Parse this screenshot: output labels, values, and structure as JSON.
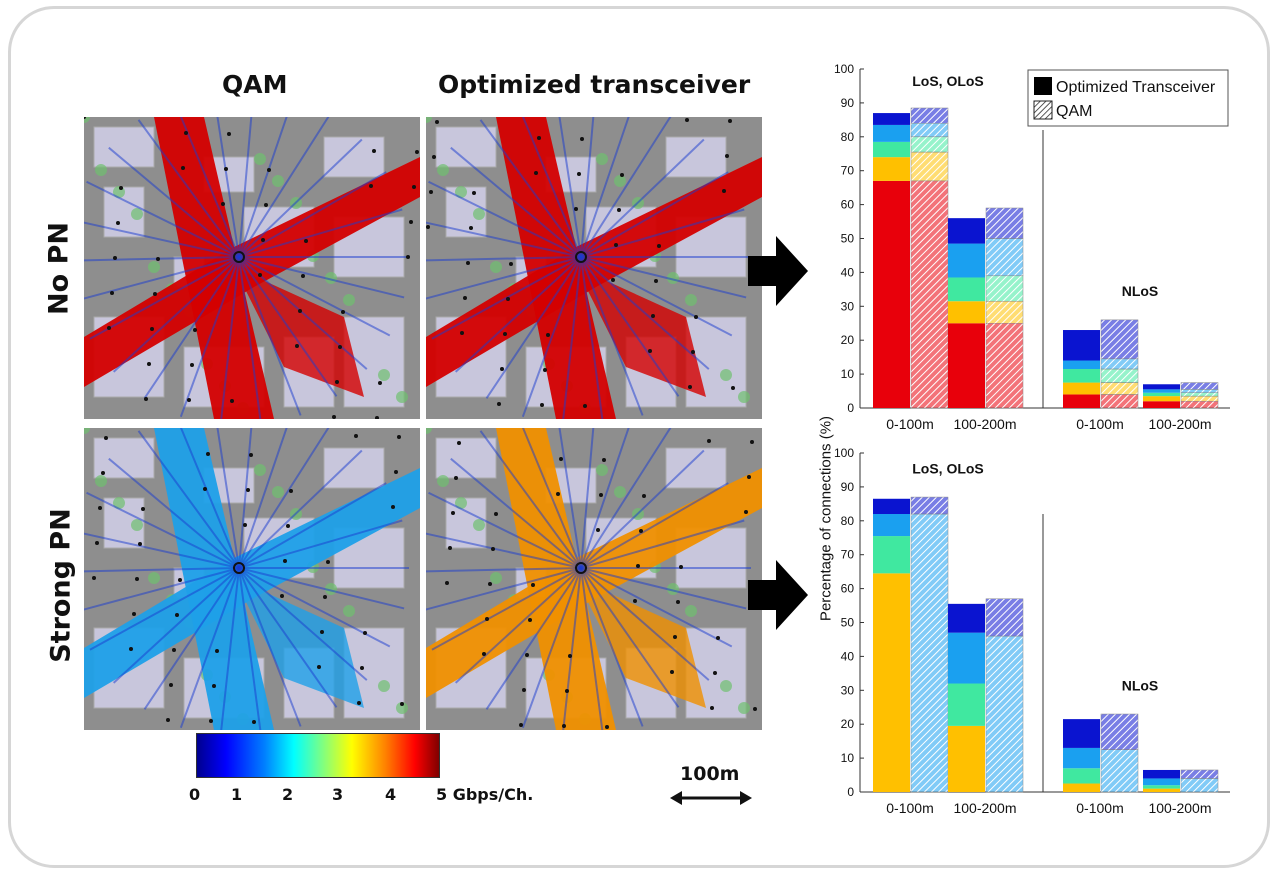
{
  "figure": {
    "col_titles": [
      "QAM",
      "Optimized transceiver"
    ],
    "row_titles": [
      "No PN",
      "Strong PN"
    ],
    "colorbar": {
      "ticks": [
        "0",
        "1",
        "2",
        "3",
        "4",
        "5 Gbps/Ch."
      ]
    },
    "scale_bar": {
      "label": "100m"
    },
    "maps": [
      {
        "name": "qam-no-pn",
        "level_color": "#d40000"
      },
      {
        "name": "optimized-no-pn",
        "level_color": "#d40000"
      },
      {
        "name": "qam-strong-pn",
        "level_color": "#1fa0e8"
      },
      {
        "name": "optimized-strong-pn",
        "level_color": "#f09000"
      }
    ]
  },
  "chart_data": [
    {
      "type": "bar",
      "stacked": true,
      "ylabel": "Percentage of connections (%)",
      "ylim": [
        0,
        100
      ],
      "yticks": [
        0,
        10,
        20,
        30,
        40,
        50,
        60,
        70,
        80,
        90,
        100
      ],
      "categories": [
        "0-100m",
        "100-200m",
        "0-100m",
        "100-200m"
      ],
      "groups": [
        {
          "label": "LoS, OLoS",
          "categories": [
            0,
            1
          ]
        },
        {
          "label": "NLoS",
          "categories": [
            2,
            3
          ]
        }
      ],
      "legend": {
        "placement": "top-right",
        "entries": [
          "Optimized Transceiver",
          "QAM"
        ]
      },
      "segment_colors": [
        "#e8000b",
        "#ffc000",
        "#40e8a0",
        "#1aa0f0",
        "#0a14d0"
      ],
      "series": [
        {
          "name": "Optimized Transceiver",
          "stacks": [
            [
              67,
              7,
              4.5,
              5,
              3.5
            ],
            [
              25,
              6.5,
              7,
              10,
              7.5
            ],
            [
              4,
              3.5,
              4,
              2.5,
              9
            ],
            [
              2,
              1.5,
              1,
              1,
              1.5
            ]
          ]
        },
        {
          "name": "QAM",
          "stacks": [
            [
              67,
              8.5,
              4.5,
              4,
              4.5
            ],
            [
              25,
              6.5,
              7.5,
              11,
              9
            ],
            [
              4,
              3.5,
              4,
              3,
              11.5
            ],
            [
              2,
              1.5,
              1,
              1,
              2
            ]
          ]
        }
      ]
    },
    {
      "type": "bar",
      "stacked": true,
      "ylabel": "Percentage of connections (%)",
      "ylim": [
        0,
        100
      ],
      "yticks": [
        0,
        10,
        20,
        30,
        40,
        50,
        60,
        70,
        80,
        90,
        100
      ],
      "categories": [
        "0-100m",
        "100-200m",
        "0-100m",
        "100-200m"
      ],
      "groups": [
        {
          "label": "LoS, OLoS",
          "categories": [
            0,
            1
          ]
        },
        {
          "label": "NLoS",
          "categories": [
            2,
            3
          ]
        }
      ],
      "segment_colors": [
        "#ffc000",
        "#40e8a0",
        "#1aa0f0",
        "#0a14d0"
      ],
      "series": [
        {
          "name": "Optimized Transceiver",
          "stacks": [
            [
              64.5,
              11,
              6.5,
              4.5
            ],
            [
              19.5,
              12.5,
              15,
              8.5
            ],
            [
              2.5,
              4.5,
              6,
              8.5
            ],
            [
              1,
              1,
              2,
              2.5
            ]
          ]
        },
        {
          "name": "QAM",
          "stacks": [
            [
              0,
              0,
              82,
              5
            ],
            [
              0,
              0,
              46,
              11
            ],
            [
              0,
              0,
              12.5,
              10.5
            ],
            [
              0,
              0,
              4,
              2.5
            ]
          ]
        }
      ]
    }
  ]
}
